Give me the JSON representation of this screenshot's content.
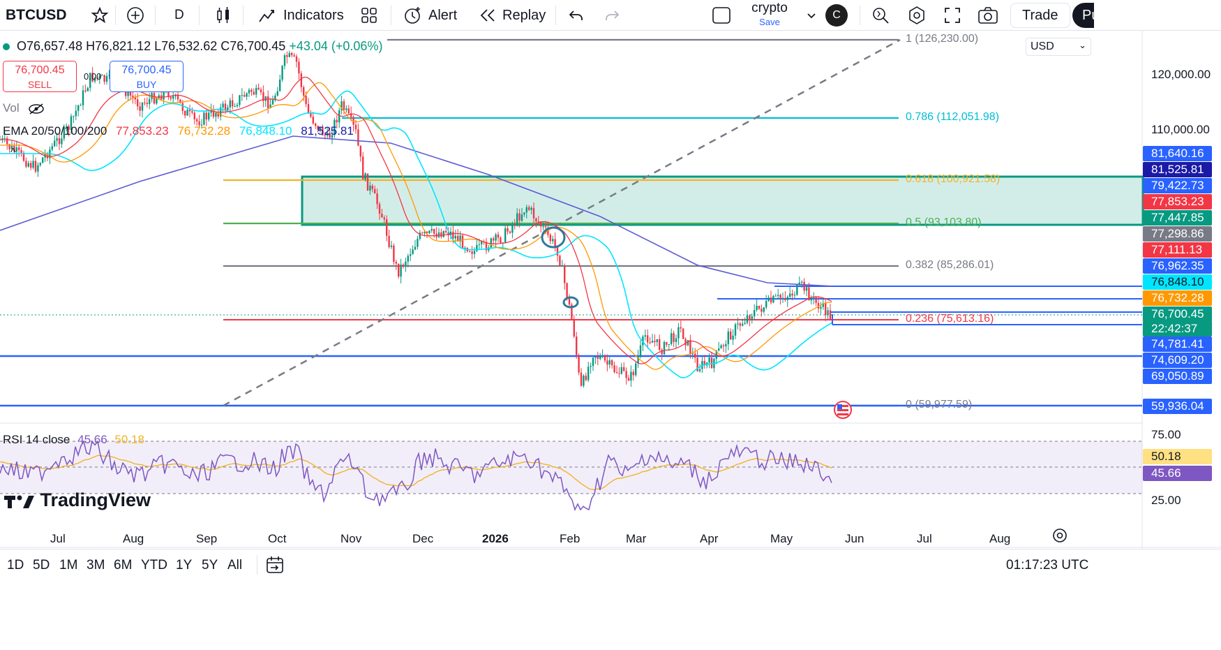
{
  "topbar": {
    "symbol": "BTCUSD",
    "interval": "D",
    "indicators_label": "Indicators",
    "alert_label": "Alert",
    "replay_label": "Replay",
    "layout_name": "crypto",
    "layout_save": "Save",
    "avatar_letter": "C",
    "trade_label": "Trade",
    "publish_label": "Pu"
  },
  "legend": {
    "ohlc": "O76,657.48 H76,821.12 L76,532.62 C76,700.45",
    "change": "+43.04 (+0.06%)",
    "sell_price": "76,700.45",
    "sell_label": "SELL",
    "spread": "0.00",
    "buy_price": "76,700.45",
    "buy_label": "BUY",
    "vol_label": "Vol",
    "ema_label": "EMA 20/50/100/200",
    "ema20": "77,853.23",
    "ema50": "76,732.28",
    "ema100": "76,848.10",
    "ema200": "81,525.81",
    "rsi_label": "RSI 14 close",
    "rsi_value": "45.66",
    "rsi_ma": "50.18",
    "collapse_symbol": "^"
  },
  "fib_levels": [
    {
      "ratio": "1",
      "label": "1 (126,230.00)",
      "price": 126230,
      "color": "#787b86"
    },
    {
      "ratio": "0.786",
      "label": "0.786 (112,051.98)",
      "price": 112051.98,
      "color": "#00bcd4"
    },
    {
      "ratio": "0.618",
      "label": "0.618 (100,921.58)",
      "price": 100921.58,
      "color": "#f0b429"
    },
    {
      "ratio": "0.5",
      "label": "0.5 (93,103.80)",
      "price": 93103.8,
      "color": "#4caf50"
    },
    {
      "ratio": "0.382",
      "label": "0.382 (85,286.01)",
      "price": 85286.01,
      "color": "#787b86"
    },
    {
      "ratio": "0.236",
      "label": "0.236 (75,613.16)",
      "price": 75613.16,
      "color": "#f23645"
    },
    {
      "ratio": "0",
      "label": "0 (59,977.59)",
      "price": 59977.59,
      "color": "#787b86"
    }
  ],
  "price_axis": {
    "currency": "USD",
    "ticks": [
      "120,000.00",
      "110,000.00"
    ],
    "tags": [
      {
        "value": "81,640.16",
        "color": "#2962ff"
      },
      {
        "value": "81,525.81",
        "color": "#1a1aa6"
      },
      {
        "value": "79,422.73",
        "color": "#2962ff"
      },
      {
        "value": "77,853.23",
        "color": "#f23645"
      },
      {
        "value": "77,447.85",
        "color": "#089981"
      },
      {
        "value": "77,298.86",
        "color": "#787b86"
      },
      {
        "value": "77,111.13",
        "color": "#f23645"
      },
      {
        "value": "76,962.35",
        "color": "#2962ff"
      },
      {
        "value": "76,848.10",
        "color": "#00e5ff"
      },
      {
        "value": "76,732.28",
        "color": "#ff9800"
      },
      {
        "value": "76,700.45",
        "color": "#089981"
      },
      {
        "value": "22:42:37",
        "color": "#089981"
      },
      {
        "value": "74,781.41",
        "color": "#2962ff"
      },
      {
        "value": "74,609.20",
        "color": "#2962ff"
      },
      {
        "value": "69,050.89",
        "color": "#2962ff"
      },
      {
        "value": "59,936.04",
        "color": "#2962ff"
      }
    ],
    "rsi_ticks": [
      "75.00",
      "25.00"
    ],
    "rsi_tags": [
      {
        "value": "50.18",
        "color": "#ffe082"
      },
      {
        "value": "45.66",
        "color": "#7e57c2"
      }
    ]
  },
  "time_axis": [
    "Jul",
    "Aug",
    "Sep",
    "Oct",
    "Nov",
    "Dec",
    "2026",
    "Feb",
    "Mar",
    "Apr",
    "May",
    "Jun",
    "Jul",
    "Aug"
  ],
  "timeframes": [
    "1D",
    "5D",
    "1M",
    "3M",
    "6M",
    "YTD",
    "1Y",
    "5Y",
    "All"
  ],
  "clock": "01:17:23 UTC",
  "branding": "TradingView",
  "colors": {
    "up": "#089981",
    "down": "#f23645",
    "ema20": "#f23645",
    "ema50": "#ff9800",
    "ema100": "#00e5ff",
    "ema200": "#5b5bd6",
    "rsi": "#7e57c2",
    "rsi_ma": "#f0b429"
  },
  "icons": {
    "star": "favorite-icon",
    "plus": "compare-icon",
    "candles": "candle-type-icon",
    "undo": "undo-icon",
    "redo": "redo-icon",
    "camera": "snapshot-icon",
    "settings": "settings-icon",
    "fullscreen": "fullscreen-icon",
    "search": "quick-search-icon",
    "calendar": "goto-date-icon",
    "event": "us-flag-event-icon",
    "eye": "hide-eye-icon"
  }
}
